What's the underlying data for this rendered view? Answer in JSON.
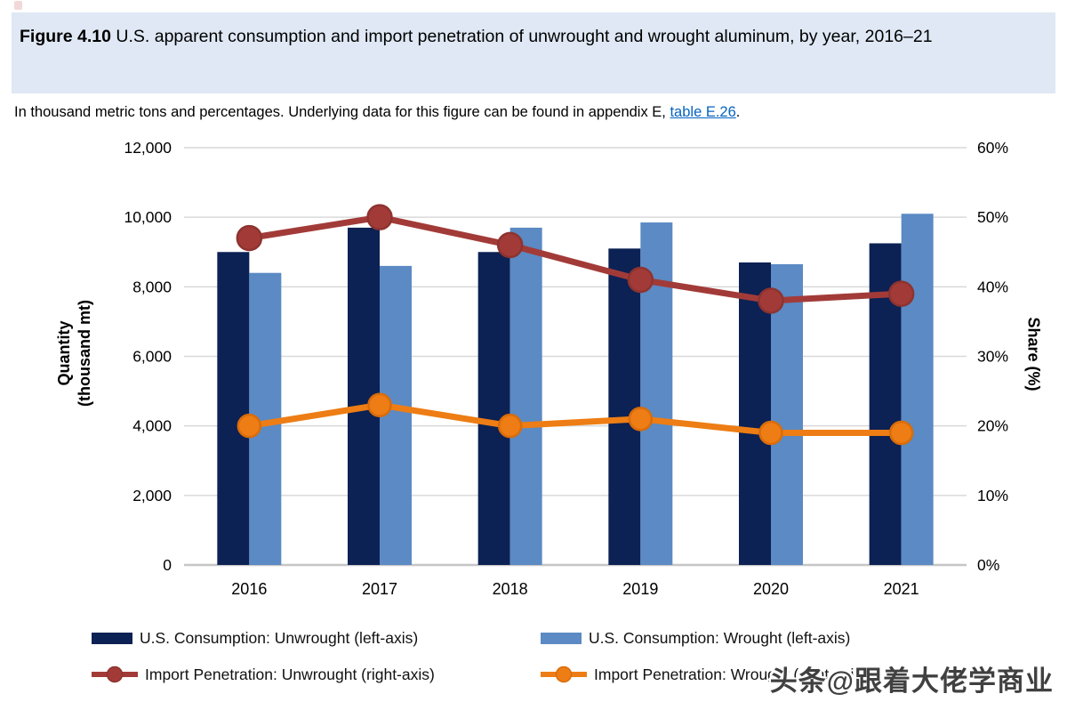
{
  "header": {
    "figure_label": "Figure 4.10",
    "title_rest": " U.S. apparent consumption and import penetration of unwrought and wrought aluminum, by year, 2016–21"
  },
  "subtitle": {
    "text_before_link": "In thousand metric tons and percentages. Underlying data for this figure can be found in appendix E, ",
    "link_text": "table E.26",
    "text_after_link": "."
  },
  "chart_data": {
    "type": "bar",
    "subtype": "grouped bars (left axis) with two line series (right axis)",
    "categories": [
      "2016",
      "2017",
      "2018",
      "2019",
      "2020",
      "2021"
    ],
    "series": [
      {
        "name": "U.S. Consumption: Unwrought (left-axis)",
        "type": "bar",
        "axis": "left",
        "color": "#0C2154",
        "values": [
          9000,
          9700,
          9000,
          9100,
          8700,
          9250
        ]
      },
      {
        "name": "U.S. Consumption: Wrought (left-axis)",
        "type": "bar",
        "axis": "left",
        "color": "#5B8AC4",
        "values": [
          8400,
          8600,
          9700,
          9850,
          8650,
          10100
        ]
      },
      {
        "name": "Import Penetration: Unwrought (right-axis)",
        "type": "line",
        "axis": "right",
        "color": "#A23B38",
        "marker_stroke": "#8E3330",
        "values": [
          47,
          50,
          46,
          41,
          38,
          39
        ]
      },
      {
        "name": "Import Penetration: Wrought (right-axis)",
        "type": "line",
        "axis": "right",
        "color": "#ED7D14",
        "marker_stroke": "#D96C0A",
        "values": [
          20,
          23,
          20,
          21,
          19,
          19
        ]
      }
    ],
    "left_axis": {
      "title_line1": "Quantity",
      "title_line2": "(thousand mt)",
      "min": 0,
      "max": 12000,
      "tick_labels": [
        "12,000",
        "10,000",
        "8,000",
        "6,000",
        "4,000",
        "2,000",
        "0"
      ]
    },
    "right_axis": {
      "title": "Share (%)",
      "min": 0,
      "max": 60,
      "tick_labels": [
        "60%",
        "50%",
        "40%",
        "30%",
        "20%",
        "10%",
        "0%"
      ]
    },
    "grid_on": true,
    "grid_color": "#D9D9D9",
    "axis_line_color": "#C6C6C6",
    "legend_position": "bottom"
  },
  "watermark": {
    "text": "头条@跟着大佬学商业"
  }
}
